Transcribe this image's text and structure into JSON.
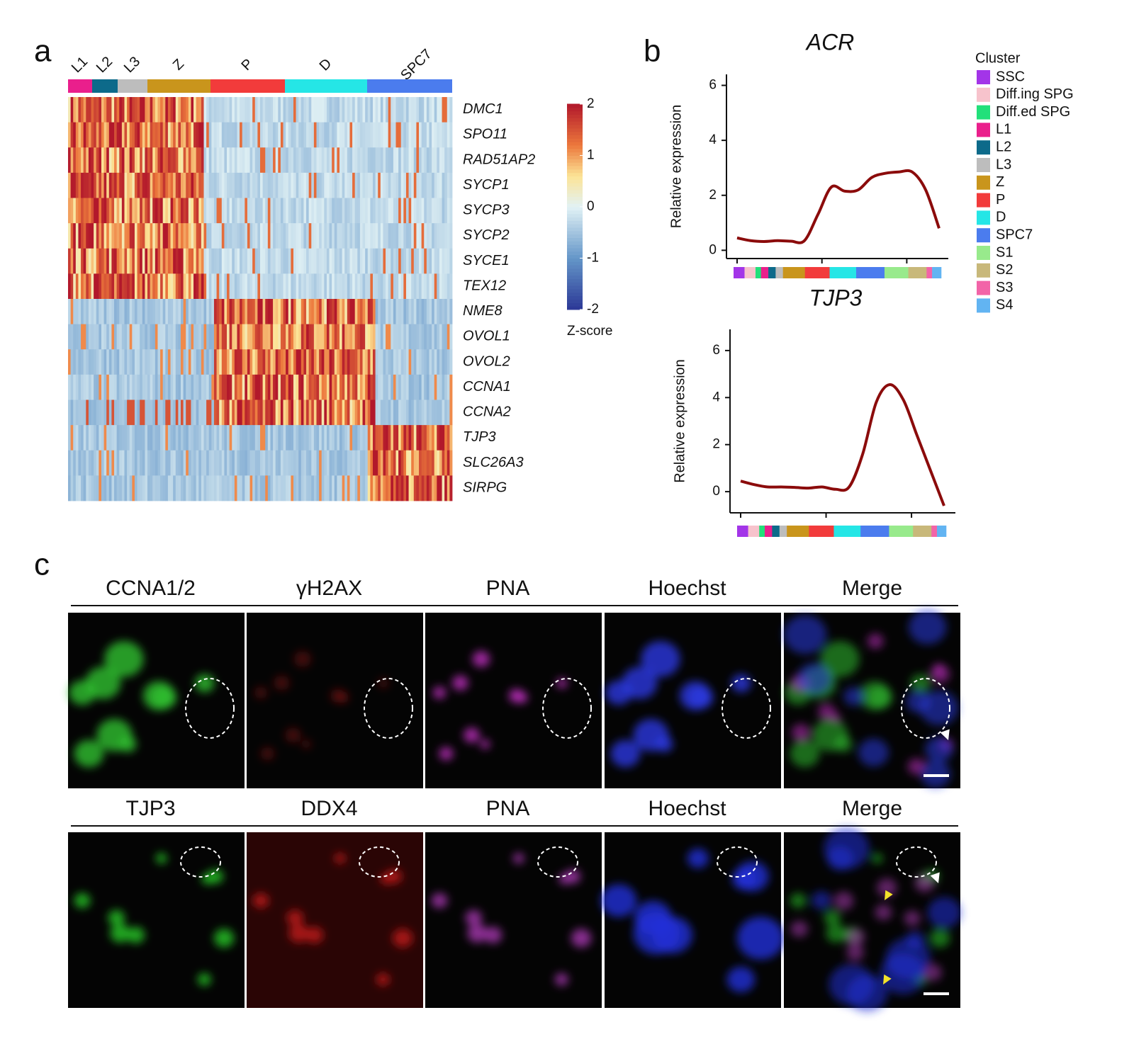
{
  "panel_labels": [
    "a",
    "b",
    "c"
  ],
  "heatmap": {
    "clusters": [
      {
        "name": "L1",
        "color": "#ea1f8c"
      },
      {
        "name": "L2",
        "color": "#0d6a8a"
      },
      {
        "name": "L3",
        "color": "#bdbdbd"
      },
      {
        "name": "Z",
        "color": "#c9951c"
      },
      {
        "name": "P",
        "color": "#f23b3b"
      },
      {
        "name": "D",
        "color": "#25e6e6"
      },
      {
        "name": "SPC7",
        "color": "#4b7cee"
      }
    ],
    "genes": [
      "DMC1",
      "SPO11",
      "RAD51AP2",
      "SYCP1",
      "SYCP3",
      "SYCP2",
      "SYCE1",
      "TEX12",
      "NME8",
      "OVOL1",
      "OVOL2",
      "CCNA1",
      "CCNA2",
      "TJP3",
      "SLC26A3",
      "SIRPG"
    ],
    "colorbar": {
      "label": "Z-score",
      "ticks": [
        2,
        1,
        0,
        -1,
        -2
      ],
      "lim": [
        -2,
        2
      ]
    }
  },
  "chart_data": [
    {
      "type": "line",
      "title": "ACR",
      "y_label": "Relative expression",
      "color": "#8b0b0b",
      "values": [
        0.45,
        0.35,
        0.32,
        0.35,
        0.33,
        0.35,
        1.3,
        2.3,
        2.15,
        2.2,
        2.65,
        2.8,
        2.85,
        2.85,
        2.2,
        0.8
      ],
      "ylim": [
        -0.3,
        6.4
      ],
      "yticks": [
        0,
        2,
        4,
        6
      ]
    },
    {
      "type": "line",
      "title": "TJP3",
      "y_label": "Relative expression",
      "color": "#8b0b0b",
      "values": [
        0.45,
        0.3,
        0.2,
        0.2,
        0.18,
        0.15,
        0.2,
        0.1,
        0.2,
        1.6,
        3.8,
        4.55,
        3.9,
        2.4,
        0.9,
        -0.6
      ],
      "ylim": [
        -0.9,
        6.9
      ],
      "yticks": [
        0,
        2,
        4,
        6
      ]
    }
  ],
  "legend": {
    "title": "Cluster",
    "items": [
      {
        "name": "SSC",
        "color": "#a335e8"
      },
      {
        "name": "Diff.ing SPG",
        "color": "#f7c3cc"
      },
      {
        "name": "Diff.ed SPG",
        "color": "#22e07a"
      },
      {
        "name": "L1",
        "color": "#ea1f8c"
      },
      {
        "name": "L2",
        "color": "#0d6a8a"
      },
      {
        "name": "L3",
        "color": "#bdbdbd"
      },
      {
        "name": "Z",
        "color": "#c9951c"
      },
      {
        "name": "P",
        "color": "#f23b3b"
      },
      {
        "name": "D",
        "color": "#25e6e6"
      },
      {
        "name": "SPC7",
        "color": "#4b7cee"
      },
      {
        "name": "S1",
        "color": "#98ea8c"
      },
      {
        "name": "S2",
        "color": "#c8b87a"
      },
      {
        "name": "S3",
        "color": "#f264a8"
      },
      {
        "name": "S4",
        "color": "#62b4f2"
      }
    ]
  },
  "panel_c": {
    "rows": [
      [
        "CCNA1/2",
        "γH2AX",
        "PNA",
        "Hoechst",
        "Merge"
      ],
      [
        "TJP3",
        "DDX4",
        "PNA",
        "Hoechst",
        "Merge"
      ]
    ]
  }
}
